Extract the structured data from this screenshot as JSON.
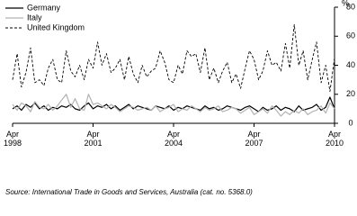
{
  "chart_data": {
    "type": "line",
    "y_label": "%",
    "source": "Source: International Trade in Goods and Services, Australia (cat. no. 5368.0)",
    "x": [
      1998.25,
      1998.42,
      1998.58,
      1998.75,
      1998.92,
      1999.08,
      1999.25,
      1999.42,
      1999.58,
      1999.75,
      1999.92,
      2000.08,
      2000.25,
      2000.42,
      2000.58,
      2000.75,
      2000.92,
      2001.08,
      2001.25,
      2001.42,
      2001.58,
      2001.75,
      2001.92,
      2002.08,
      2002.25,
      2002.42,
      2002.58,
      2002.75,
      2002.92,
      2003.08,
      2003.25,
      2003.42,
      2003.58,
      2003.75,
      2003.92,
      2004.08,
      2004.25,
      2004.42,
      2004.58,
      2004.75,
      2004.92,
      2005.08,
      2005.25,
      2005.42,
      2005.58,
      2005.75,
      2005.92,
      2006.08,
      2006.25,
      2006.42,
      2006.58,
      2006.75,
      2006.92,
      2007.08,
      2007.25,
      2007.42,
      2007.58,
      2007.75,
      2007.92,
      2008.08,
      2008.25,
      2008.42,
      2008.58,
      2008.75,
      2008.92,
      2009.08,
      2009.25,
      2009.42,
      2009.58,
      2009.75,
      2009.92,
      2010.08,
      2010.25
    ],
    "series": [
      {
        "name": "Germany",
        "color": "#000000",
        "style": "solid",
        "values": [
          10,
          12,
          9,
          13,
          11,
          14,
          10,
          12,
          9,
          11,
          10,
          12,
          11,
          13,
          10,
          9,
          12,
          14,
          10,
          12,
          11,
          13,
          10,
          12,
          9,
          11,
          13,
          10,
          12,
          11,
          10,
          9,
          12,
          11,
          10,
          12,
          9,
          11,
          10,
          12,
          11,
          10,
          9,
          12,
          10,
          11,
          9,
          10,
          12,
          11,
          10,
          9,
          11,
          12,
          10,
          8,
          11,
          9,
          10,
          12,
          9,
          11,
          10,
          8,
          12,
          9,
          10,
          11,
          13,
          9,
          11,
          18,
          10
        ]
      },
      {
        "name": "Italy",
        "color": "#b3b3b3",
        "style": "solid",
        "values": [
          13,
          9,
          14,
          12,
          8,
          15,
          11,
          10,
          13,
          9,
          12,
          16,
          20,
          11,
          17,
          10,
          9,
          20,
          13,
          14,
          12,
          10,
          13,
          11,
          8,
          10,
          12,
          11,
          9,
          10,
          11,
          9,
          12,
          8,
          10,
          11,
          13,
          8,
          10,
          9,
          12,
          10,
          8,
          11,
          9,
          10,
          12,
          8,
          9,
          11,
          10,
          7,
          9,
          11,
          6,
          8,
          10,
          7,
          12,
          9,
          5,
          8,
          6,
          9,
          7,
          10,
          6,
          8,
          9,
          12,
          7,
          14,
          10
        ]
      },
      {
        "name": "United Kingdom",
        "color": "#000000",
        "style": "dashed",
        "values": [
          30,
          48,
          25,
          35,
          52,
          28,
          30,
          26,
          38,
          44,
          30,
          28,
          50,
          36,
          32,
          40,
          30,
          44,
          38,
          56,
          40,
          48,
          35,
          38,
          44,
          30,
          46,
          34,
          28,
          40,
          32,
          36,
          38,
          50,
          42,
          30,
          28,
          40,
          34,
          50,
          46,
          48,
          35,
          52,
          30,
          38,
          28,
          36,
          42,
          28,
          34,
          24,
          38,
          50,
          44,
          30,
          36,
          50,
          40,
          42,
          36,
          55,
          38,
          68,
          40,
          50,
          30,
          44,
          56,
          28,
          40,
          22,
          45
        ]
      }
    ],
    "xlim": [
      1998.25,
      2010.25
    ],
    "xticks": [
      {
        "value": 1998.25,
        "label": "Apr 1998"
      },
      {
        "value": 2001.25,
        "label": "Apr 2001"
      },
      {
        "value": 2004.25,
        "label": "Apr 2004"
      },
      {
        "value": 2007.25,
        "label": "Apr 2007"
      },
      {
        "value": 2010.25,
        "label": "Apr 2010"
      }
    ],
    "ylim": [
      0,
      80
    ],
    "yticks": [
      0,
      20,
      40,
      60,
      80
    ],
    "legend": "top-left"
  }
}
